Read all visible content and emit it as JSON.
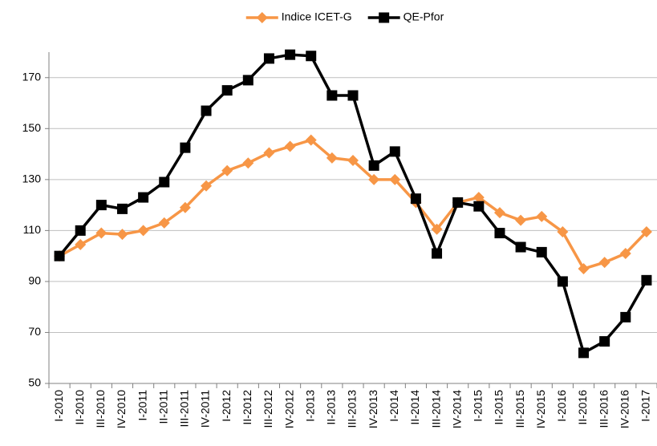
{
  "chart_data": {
    "type": "line",
    "categories": [
      "I-2010",
      "II-2010",
      "III-2010",
      "IV-2010",
      "I-2011",
      "II-2011",
      "III-2011",
      "IV-2011",
      "I-2012",
      "II-2012",
      "III-2012",
      "IV-2012",
      "I-2013",
      "II-2013",
      "III-2013",
      "IV-2013",
      "I-2014",
      "II-2014",
      "III-2014",
      "IV-2014",
      "I-2015",
      "II-2015",
      "III-2015",
      "IV-2015",
      "I-2016",
      "II-2016",
      "III-2016",
      "IV-2016",
      "I-2017"
    ],
    "series": [
      {
        "name": "Indice ICET-G",
        "color": "#f79646",
        "marker": "diamond",
        "values": [
          100,
          104.5,
          109,
          108.5,
          110,
          113,
          119,
          127.5,
          133.5,
          136.5,
          140.5,
          143,
          145.5,
          138.5,
          137.5,
          130,
          130,
          121,
          110.5,
          121,
          123,
          117,
          114,
          115.5,
          109.5,
          95,
          97.5,
          101,
          109.5
        ]
      },
      {
        "name": "QE-Pfor",
        "color": "#000000",
        "marker": "square",
        "values": [
          100,
          110,
          120,
          118.5,
          123,
          129,
          142.5,
          157,
          165,
          169,
          177.5,
          179,
          178.5,
          163,
          163,
          135.5,
          141,
          122.5,
          101,
          121,
          119.5,
          109,
          103.5,
          101.5,
          90,
          62,
          66.5,
          76,
          90.5
        ]
      }
    ],
    "ylim": [
      50,
      180
    ],
    "yticks": [
      50,
      70,
      90,
      110,
      130,
      150,
      170
    ],
    "grid": true,
    "legend": "top"
  }
}
